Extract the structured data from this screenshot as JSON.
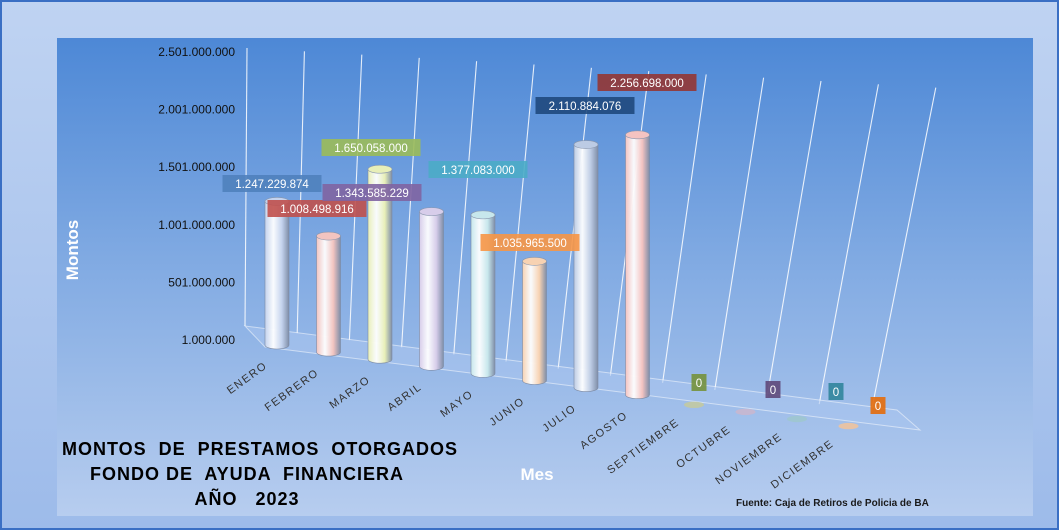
{
  "chart_data": {
    "type": "bar",
    "style": "3d-cylinder",
    "title": [
      "MONTOS  DE  PRESTAMOS  OTORGADOS",
      "FONDO DE  AYUDA  FINANCIERA",
      "AÑO   2023"
    ],
    "xlabel": "Mes",
    "ylabel": "Montos",
    "source": "Fuente: Caja de Retiros de Policia de BA",
    "yticks": [
      "1.000.000",
      "501.000.000",
      "1.001.000.000",
      "1.501.000.000",
      "2.001.000.000",
      "2.501.000.000"
    ],
    "ylim": [
      1000000,
      2501000000
    ],
    "categories": [
      "ENERO",
      "FEBRERO",
      "MARZO",
      "ABRIL",
      "MAYO",
      "JUNIO",
      "JULIO",
      "AGOSTO",
      "SEPTIEMBRE",
      "OCTUBRE",
      "NOVIEMBRE",
      "DICIEMBRE"
    ],
    "values": [
      1247229874,
      1008498916,
      1650058000,
      1343585229,
      1377083000,
      1035965500,
      2110884076,
      2256698000,
      0,
      0,
      0,
      0
    ],
    "value_labels": [
      "1.247.229.874",
      "1.008.498.916",
      "1.650.058.000",
      "1.343.585.229",
      "1.377.083.000",
      "1.035.965.500",
      "2.110.884.076",
      "2.256.698.000",
      "0",
      "0",
      "0",
      "0"
    ],
    "bar_colors": [
      "#c4d3ee",
      "#f2c4c0",
      "#e8efb8",
      "#d7cdea",
      "#c7e7ec",
      "#f7d2b2",
      "#bccbe4",
      "#f4c3c1",
      "#c2c9a2",
      "#c8b7cf",
      "#9fc6cf",
      "#eec39f"
    ],
    "label_colors": [
      "#4f81bd",
      "#c0504d",
      "#9bbb59",
      "#8064a2",
      "#4bacc6",
      "#f79646",
      "#1f497d",
      "#943634",
      "#76923c",
      "#5f497a",
      "#31859c",
      "#e46c0a"
    ],
    "grid": true,
    "legend": "none"
  }
}
